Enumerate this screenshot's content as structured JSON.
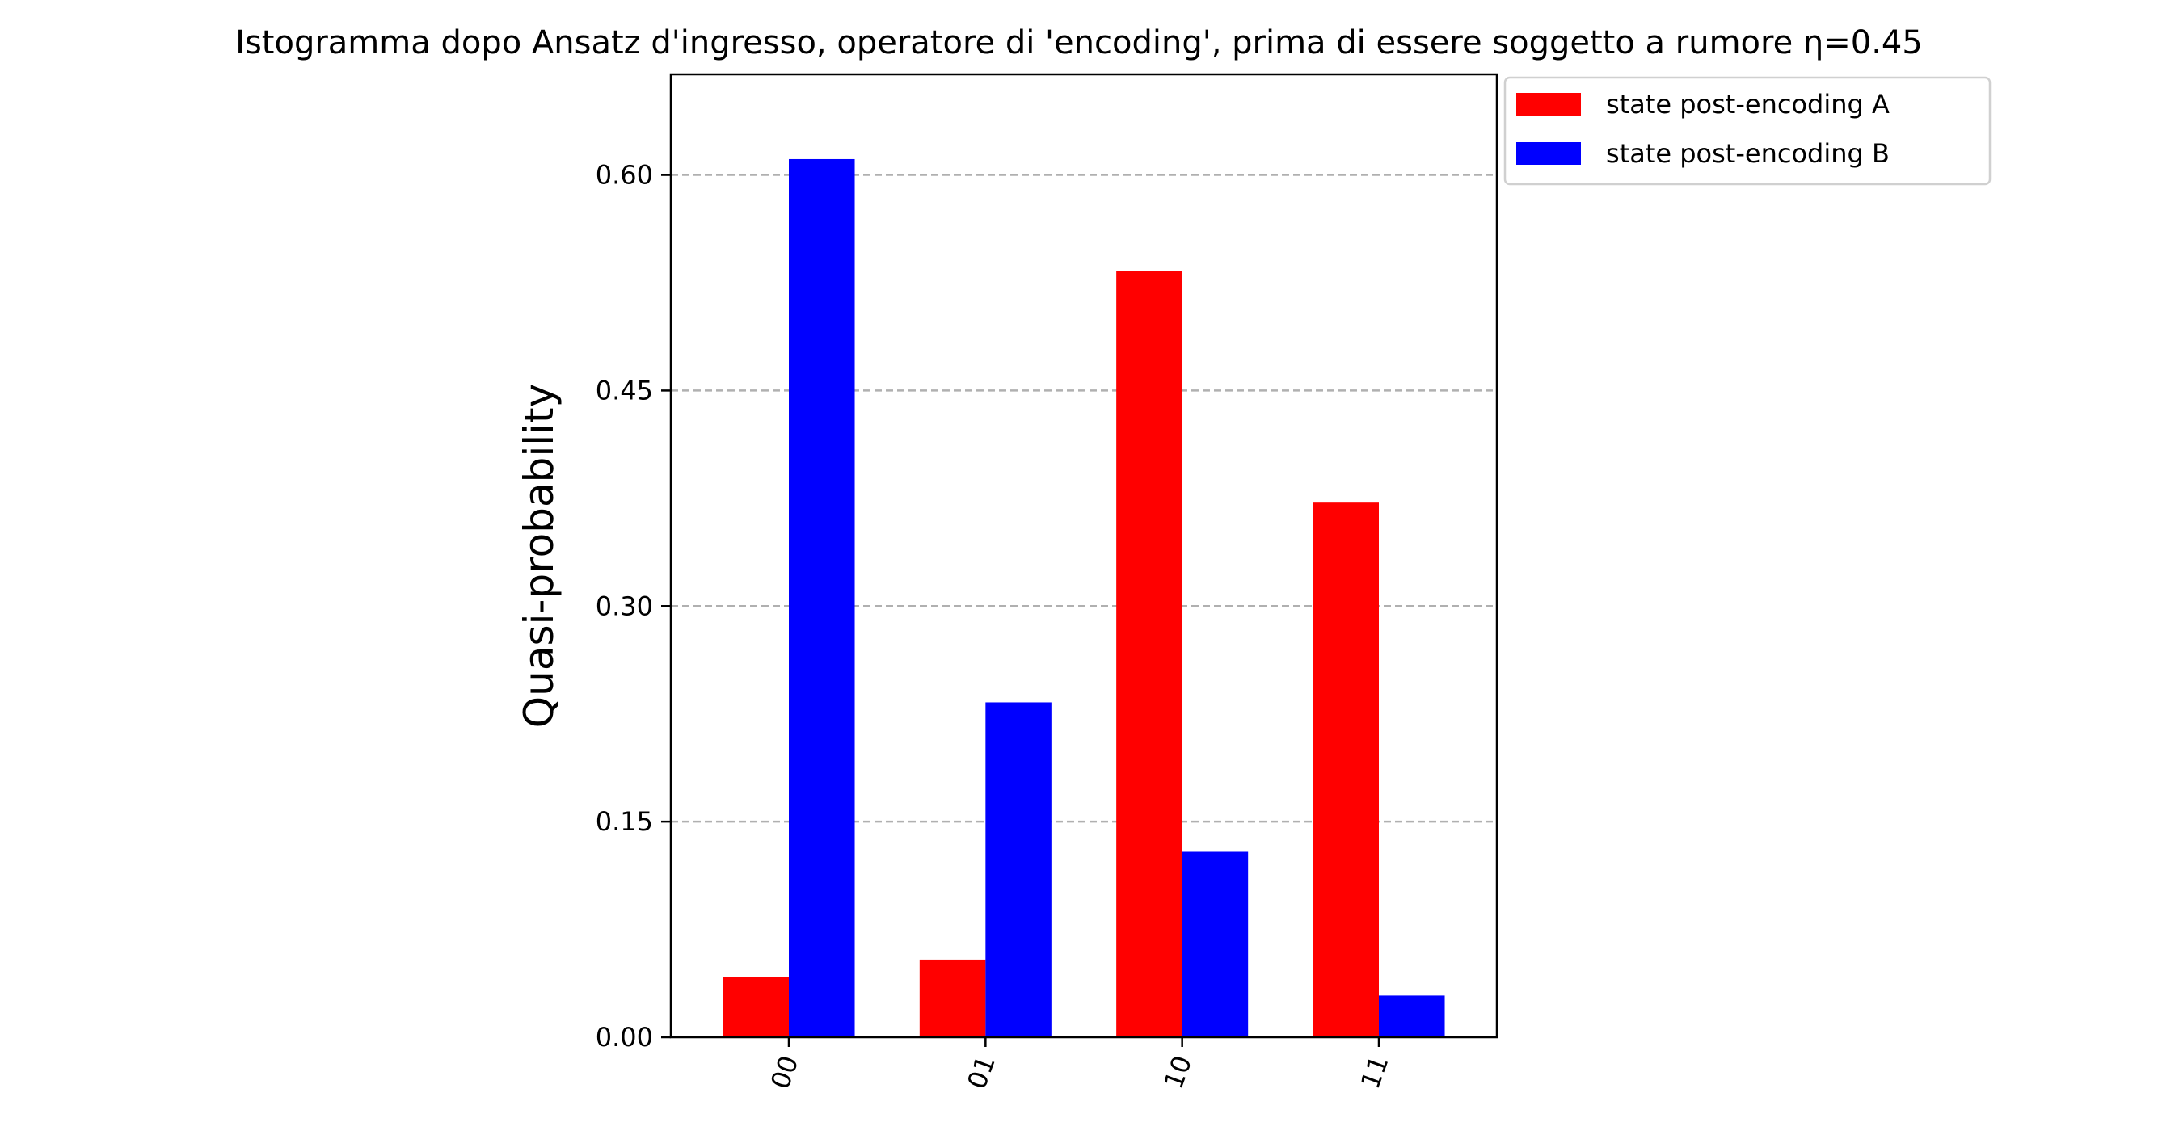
{
  "chart_data": {
    "type": "bar",
    "title": "Istogramma dopo Ansatz d'ingresso, operatore di 'encoding', prima di essere soggetto a rumore η=0.45",
    "xlabel": "",
    "ylabel": "Quasi-probability",
    "categories": [
      "00",
      "01",
      "10",
      "11"
    ],
    "series": [
      {
        "name": "state post-encoding A",
        "color": "#ff0000",
        "values": [
          0.042,
          0.054,
          0.533,
          0.372
        ]
      },
      {
        "name": "state post-encoding B",
        "color": "#0000ff",
        "values": [
          0.611,
          0.233,
          0.129,
          0.029
        ]
      }
    ],
    "ylim": [
      0,
      0.67
    ],
    "yticks": [
      "0.00",
      "0.15",
      "0.30",
      "0.45",
      "0.60"
    ],
    "grid": "horizontal dashed",
    "legend": "outside top-right",
    "xtick_rotation": 70
  }
}
